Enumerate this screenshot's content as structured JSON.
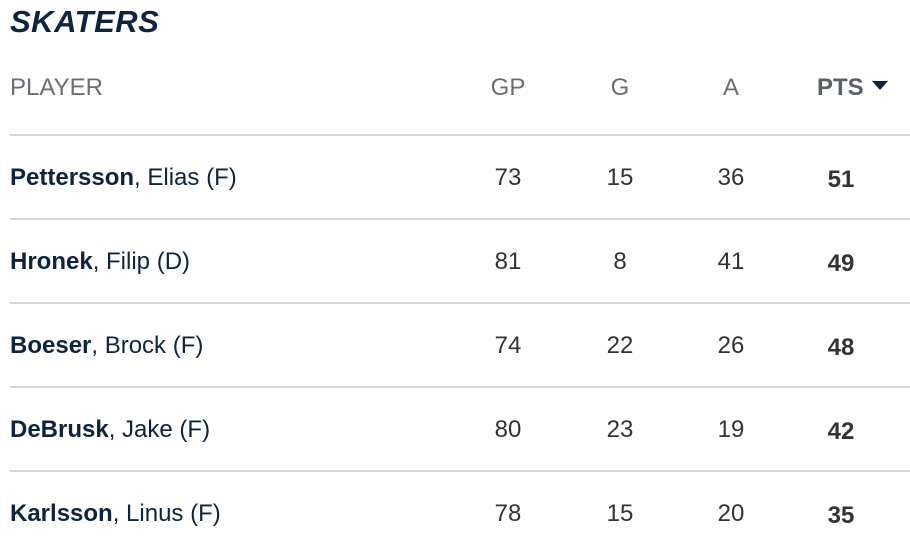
{
  "title": "SKATERS",
  "columns": {
    "player": "PLAYER",
    "gp": "GP",
    "g": "G",
    "a": "A",
    "pts": "PTS"
  },
  "sort": {
    "column": "PTS",
    "direction": "descending",
    "icon": "caret-down-icon"
  },
  "rows": [
    {
      "last": "Pettersson",
      "rest": ", Elias (F)",
      "gp": "73",
      "g": "15",
      "a": "36",
      "pts": "51"
    },
    {
      "last": "Hronek",
      "rest": ", Filip (D)",
      "gp": "81",
      "g": "8",
      "a": "41",
      "pts": "49"
    },
    {
      "last": "Boeser",
      "rest": ", Brock (F)",
      "gp": "74",
      "g": "22",
      "a": "26",
      "pts": "48"
    },
    {
      "last": "DeBrusk",
      "rest": ", Jake (F)",
      "gp": "80",
      "g": "23",
      "a": "19",
      "pts": "42"
    },
    {
      "last": "Karlsson",
      "rest": ", Linus (F)",
      "gp": "78",
      "g": "15",
      "a": "20",
      "pts": "35"
    }
  ],
  "colors": {
    "navy": "#0d2340",
    "header_gray": "#6a6e73",
    "text": "#333333",
    "divider": "#d6d6d6"
  }
}
